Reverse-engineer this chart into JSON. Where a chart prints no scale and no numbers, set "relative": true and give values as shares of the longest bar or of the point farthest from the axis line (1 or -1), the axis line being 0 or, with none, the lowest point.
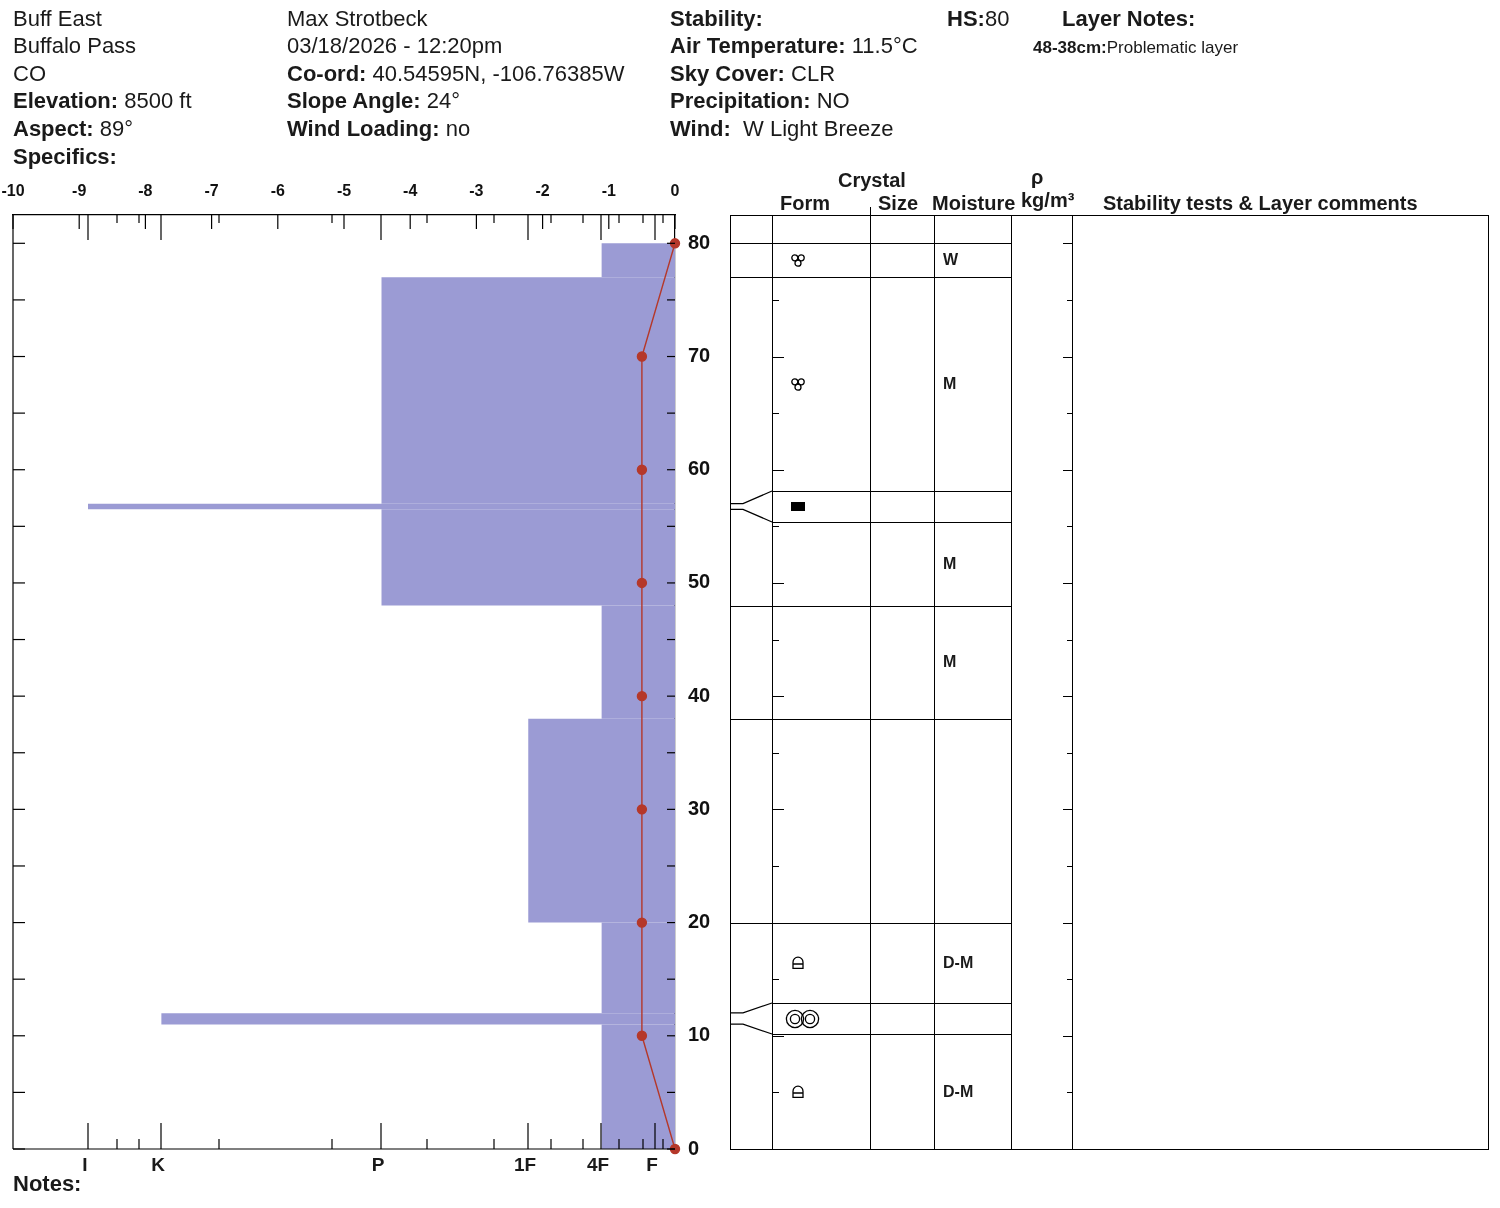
{
  "chart_data": [
    {
      "type": "bar",
      "orientation": "horizontal",
      "relative": true,
      "series": [
        {
          "color": "#9b9bd4",
          "x": [
            5.5,
            11.5,
            16,
            29,
            43,
            52.25,
            56.75,
            67,
            78.5
          ],
          "values": [
            0.125,
            0.875,
            0.125,
            0.25,
            0.125,
            0.5,
            1,
            0.5,
            0.125
          ]
        },
        {
          "type": "line",
          "axis": "x2",
          "color": "#b5382a",
          "marker": "circle",
          "line_style": "solid",
          "x": [
            80,
            70,
            60,
            50,
            40,
            30,
            20,
            10,
            0
          ],
          "values": [
            0,
            -0.5,
            -0.5,
            -0.5,
            -0.5,
            -0.5,
            -0.5,
            -0.5,
            0
          ]
        }
      ],
      "x2lim": [
        -10,
        0
      ],
      "x2ticks": [
        -10,
        -9,
        -8,
        -7,
        -6,
        -5,
        -4,
        -3,
        -2,
        -1,
        0
      ],
      "ylim": [
        0,
        82.5
      ],
      "yticks": [
        0,
        {
          "value": 5,
          "label": null
        },
        10,
        {
          "value": 15,
          "label": null
        },
        20,
        {
          "value": 25,
          "label": null
        },
        30,
        {
          "value": 35,
          "label": null
        },
        40,
        {
          "value": 45,
          "label": null
        },
        50,
        {
          "value": 55,
          "label": null
        },
        60,
        {
          "value": 65,
          "label": null
        },
        70,
        {
          "value": 75,
          "label": null
        },
        80
      ],
      "annotations": [
        "Buff East",
        "Buffalo Pass",
        "CO",
        "Elevation: 8500 ft",
        "Aspect: 89°",
        "Specifics:",
        "Max Strotbeck",
        "03/18/2026 - 12:20pm",
        "Co-ord: 40.54595N, -106.76385W",
        "Slope Angle: 24°",
        "Wind Loading: no",
        "Stability:",
        "Air Temperature: 11.5°C",
        "Sky Cover: CLR",
        "Precipitation: NO",
        "Wind:  W Light Breeze",
        "HS:80",
        "Layer Notes:",
        "48-38cm:Problematic layer",
        "I",
        "K",
        "P",
        "1F",
        "4F",
        "F",
        "Notes:"
      ]
    },
    {
      "type": "other",
      "annotations": [
        "Crystal",
        "Form",
        "Size",
        "Moisture",
        "ρ",
        "kg/m³",
        "Stability tests & Layer comments",
        "W",
        "M",
        "M",
        "M",
        "D-M",
        "D-M"
      ]
    }
  ]
}
